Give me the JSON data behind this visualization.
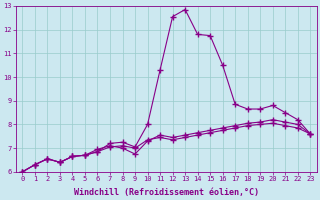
{
  "title": "",
  "xlabel": "Windchill (Refroidissement éolien,°C)",
  "ylabel": "",
  "bg_color": "#cce8f0",
  "line_color": "#880088",
  "grid_color": "#99cccc",
  "xlim": [
    -0.5,
    23.5
  ],
  "ylim": [
    6,
    13
  ],
  "xticks": [
    0,
    1,
    2,
    3,
    4,
    5,
    6,
    7,
    8,
    9,
    10,
    11,
    12,
    13,
    14,
    15,
    16,
    17,
    18,
    19,
    20,
    21,
    22,
    23
  ],
  "yticks": [
    6,
    7,
    8,
    9,
    10,
    11,
    12,
    13
  ],
  "series": [
    [
      6.0,
      6.3,
      6.55,
      6.4,
      6.65,
      6.7,
      6.85,
      7.2,
      7.25,
      7.05,
      8.0,
      10.3,
      12.55,
      12.85,
      11.8,
      11.75,
      10.5,
      8.85,
      8.65,
      8.65,
      8.8,
      8.5,
      8.2,
      7.6
    ],
    [
      6.0,
      6.3,
      6.55,
      6.4,
      6.65,
      6.7,
      6.95,
      7.1,
      7.0,
      6.75,
      7.3,
      7.55,
      7.45,
      7.55,
      7.65,
      7.75,
      7.85,
      7.95,
      8.05,
      8.1,
      8.2,
      8.1,
      8.0,
      7.6
    ],
    [
      6.0,
      6.3,
      6.55,
      6.4,
      6.65,
      6.7,
      6.85,
      7.05,
      7.1,
      7.0,
      7.35,
      7.45,
      7.35,
      7.45,
      7.55,
      7.65,
      7.75,
      7.85,
      7.95,
      8.0,
      8.05,
      7.95,
      7.85,
      7.6
    ]
  ],
  "marker": "+",
  "markersize": 4.0,
  "markeredgewidth": 1.0,
  "linewidth": 0.8,
  "tick_fontsize": 5.0,
  "xlabel_fontsize": 6.0
}
